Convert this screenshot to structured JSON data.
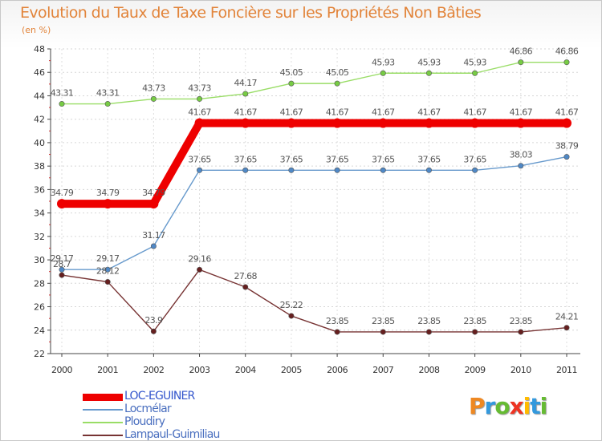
{
  "chart_data": {
    "type": "line",
    "title": "Evolution du Taux de Taxe Foncière sur les Propriétés Non Bâties",
    "unit_label": "(en %)",
    "ylim": [
      22,
      48
    ],
    "y_ticks": [
      22,
      24,
      26,
      28,
      30,
      32,
      34,
      36,
      38,
      40,
      42,
      44,
      46,
      48
    ],
    "x": [
      "2000",
      "2001",
      "2002",
      "2003",
      "2004",
      "2005",
      "2006",
      "2007",
      "2008",
      "2009",
      "2010",
      "2011"
    ],
    "series": [
      {
        "name": "Ploudiry",
        "color": "#99dd66",
        "dot": "#77cc44",
        "values": [
          43.31,
          43.31,
          43.73,
          43.73,
          44.17,
          45.05,
          45.05,
          45.93,
          45.93,
          45.93,
          46.86,
          46.86
        ],
        "labels": [
          "43.31",
          "43.31",
          "43.73",
          "43.73",
          "44.17",
          "45.05",
          "45.05",
          "45.93",
          "45.93",
          "45.93",
          "46.86",
          "46.86"
        ]
      },
      {
        "name": "Locmélar",
        "color": "#6699cc",
        "dot": "#4f88c6",
        "values": [
          29.17,
          29.17,
          31.17,
          37.65,
          37.65,
          37.65,
          37.65,
          37.65,
          37.65,
          37.65,
          38.03,
          38.79
        ],
        "labels": [
          "29.17",
          "29.17",
          "31.17",
          "37.65",
          "37.65",
          "37.65",
          "37.65",
          "37.65",
          "37.65",
          "37.65",
          "38.03",
          "38.79"
        ]
      },
      {
        "name": "Lampaul-Guimiliau",
        "color": "#773333",
        "dot": "#661f1f",
        "values": [
          28.7,
          28.12,
          23.9,
          29.16,
          27.68,
          25.22,
          23.85,
          23.85,
          23.85,
          23.85,
          23.85,
          24.21
        ],
        "labels": [
          "28.7",
          "28.12",
          "23.9",
          "29.16",
          "27.68",
          "25.22",
          "23.85",
          "23.85",
          "23.85",
          "23.85",
          "23.85",
          "24.21"
        ]
      },
      {
        "name": "LOC-EGUINER",
        "color": "#ee0000",
        "dot": "#ee0000",
        "values": [
          34.79,
          34.79,
          34.79,
          41.67,
          41.67,
          41.67,
          41.67,
          41.67,
          41.67,
          41.67,
          41.67,
          41.67
        ],
        "labels": [
          "34.79",
          "34.79",
          "34.79",
          "41.67",
          "41.67",
          "41.67",
          "41.67",
          "41.67",
          "41.67",
          "41.67",
          "41.67",
          "41.67"
        ]
      }
    ],
    "legend_order": [
      "LOC-EGUINER",
      "Locmélar",
      "Ploudiry",
      "Lampaul-Guimiliau"
    ],
    "legend_placement": "bottom-left",
    "grid": true
  },
  "brand": {
    "letters": [
      "P",
      "r",
      "o",
      "x",
      "i",
      "t",
      "i"
    ],
    "colors": [
      "#ee8822",
      "#3399dd",
      "#66bb33",
      "#ee3322",
      "#ffbb00",
      "#3399dd",
      "#66bb33"
    ]
  }
}
